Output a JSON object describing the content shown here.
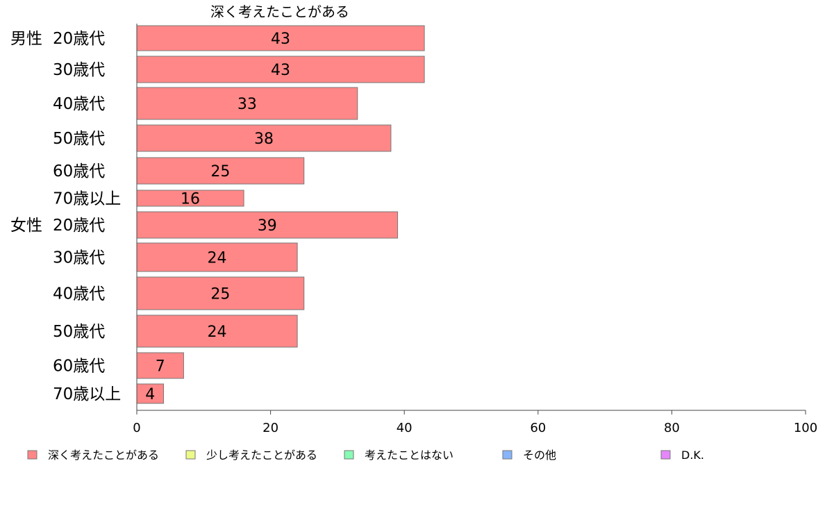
{
  "chart_data": {
    "type": "bar",
    "orientation": "horizontal",
    "title": "深く考えたことがある",
    "groups": [
      {
        "label": "男性",
        "categories": [
          "20歳代",
          "30歳代",
          "40歳代",
          "50歳代",
          "60歳代",
          "70歳以上"
        ],
        "values": [
          43,
          43,
          33,
          38,
          25,
          16
        ]
      },
      {
        "label": "女性",
        "categories": [
          "20歳代",
          "30歳代",
          "40歳代",
          "50歳代",
          "60歳代",
          "70歳以上"
        ],
        "values": [
          39,
          24,
          25,
          24,
          7,
          4
        ]
      }
    ],
    "xlim": [
      0,
      100
    ],
    "xticks": [
      0,
      20,
      40,
      60,
      80,
      100
    ],
    "series_color": "#ff8787",
    "grid": false,
    "legend": {
      "placement": "bottom",
      "items": [
        {
          "label": "深く考えたことがある",
          "color": "#ff8787"
        },
        {
          "label": "少し考えたことがある",
          "color": "#ecfa87"
        },
        {
          "label": "考えたことはない",
          "color": "#87fab4"
        },
        {
          "label": "その他",
          "color": "#87b4fa"
        },
        {
          "label": "D.K.",
          "color": "#e487fa"
        }
      ]
    }
  }
}
